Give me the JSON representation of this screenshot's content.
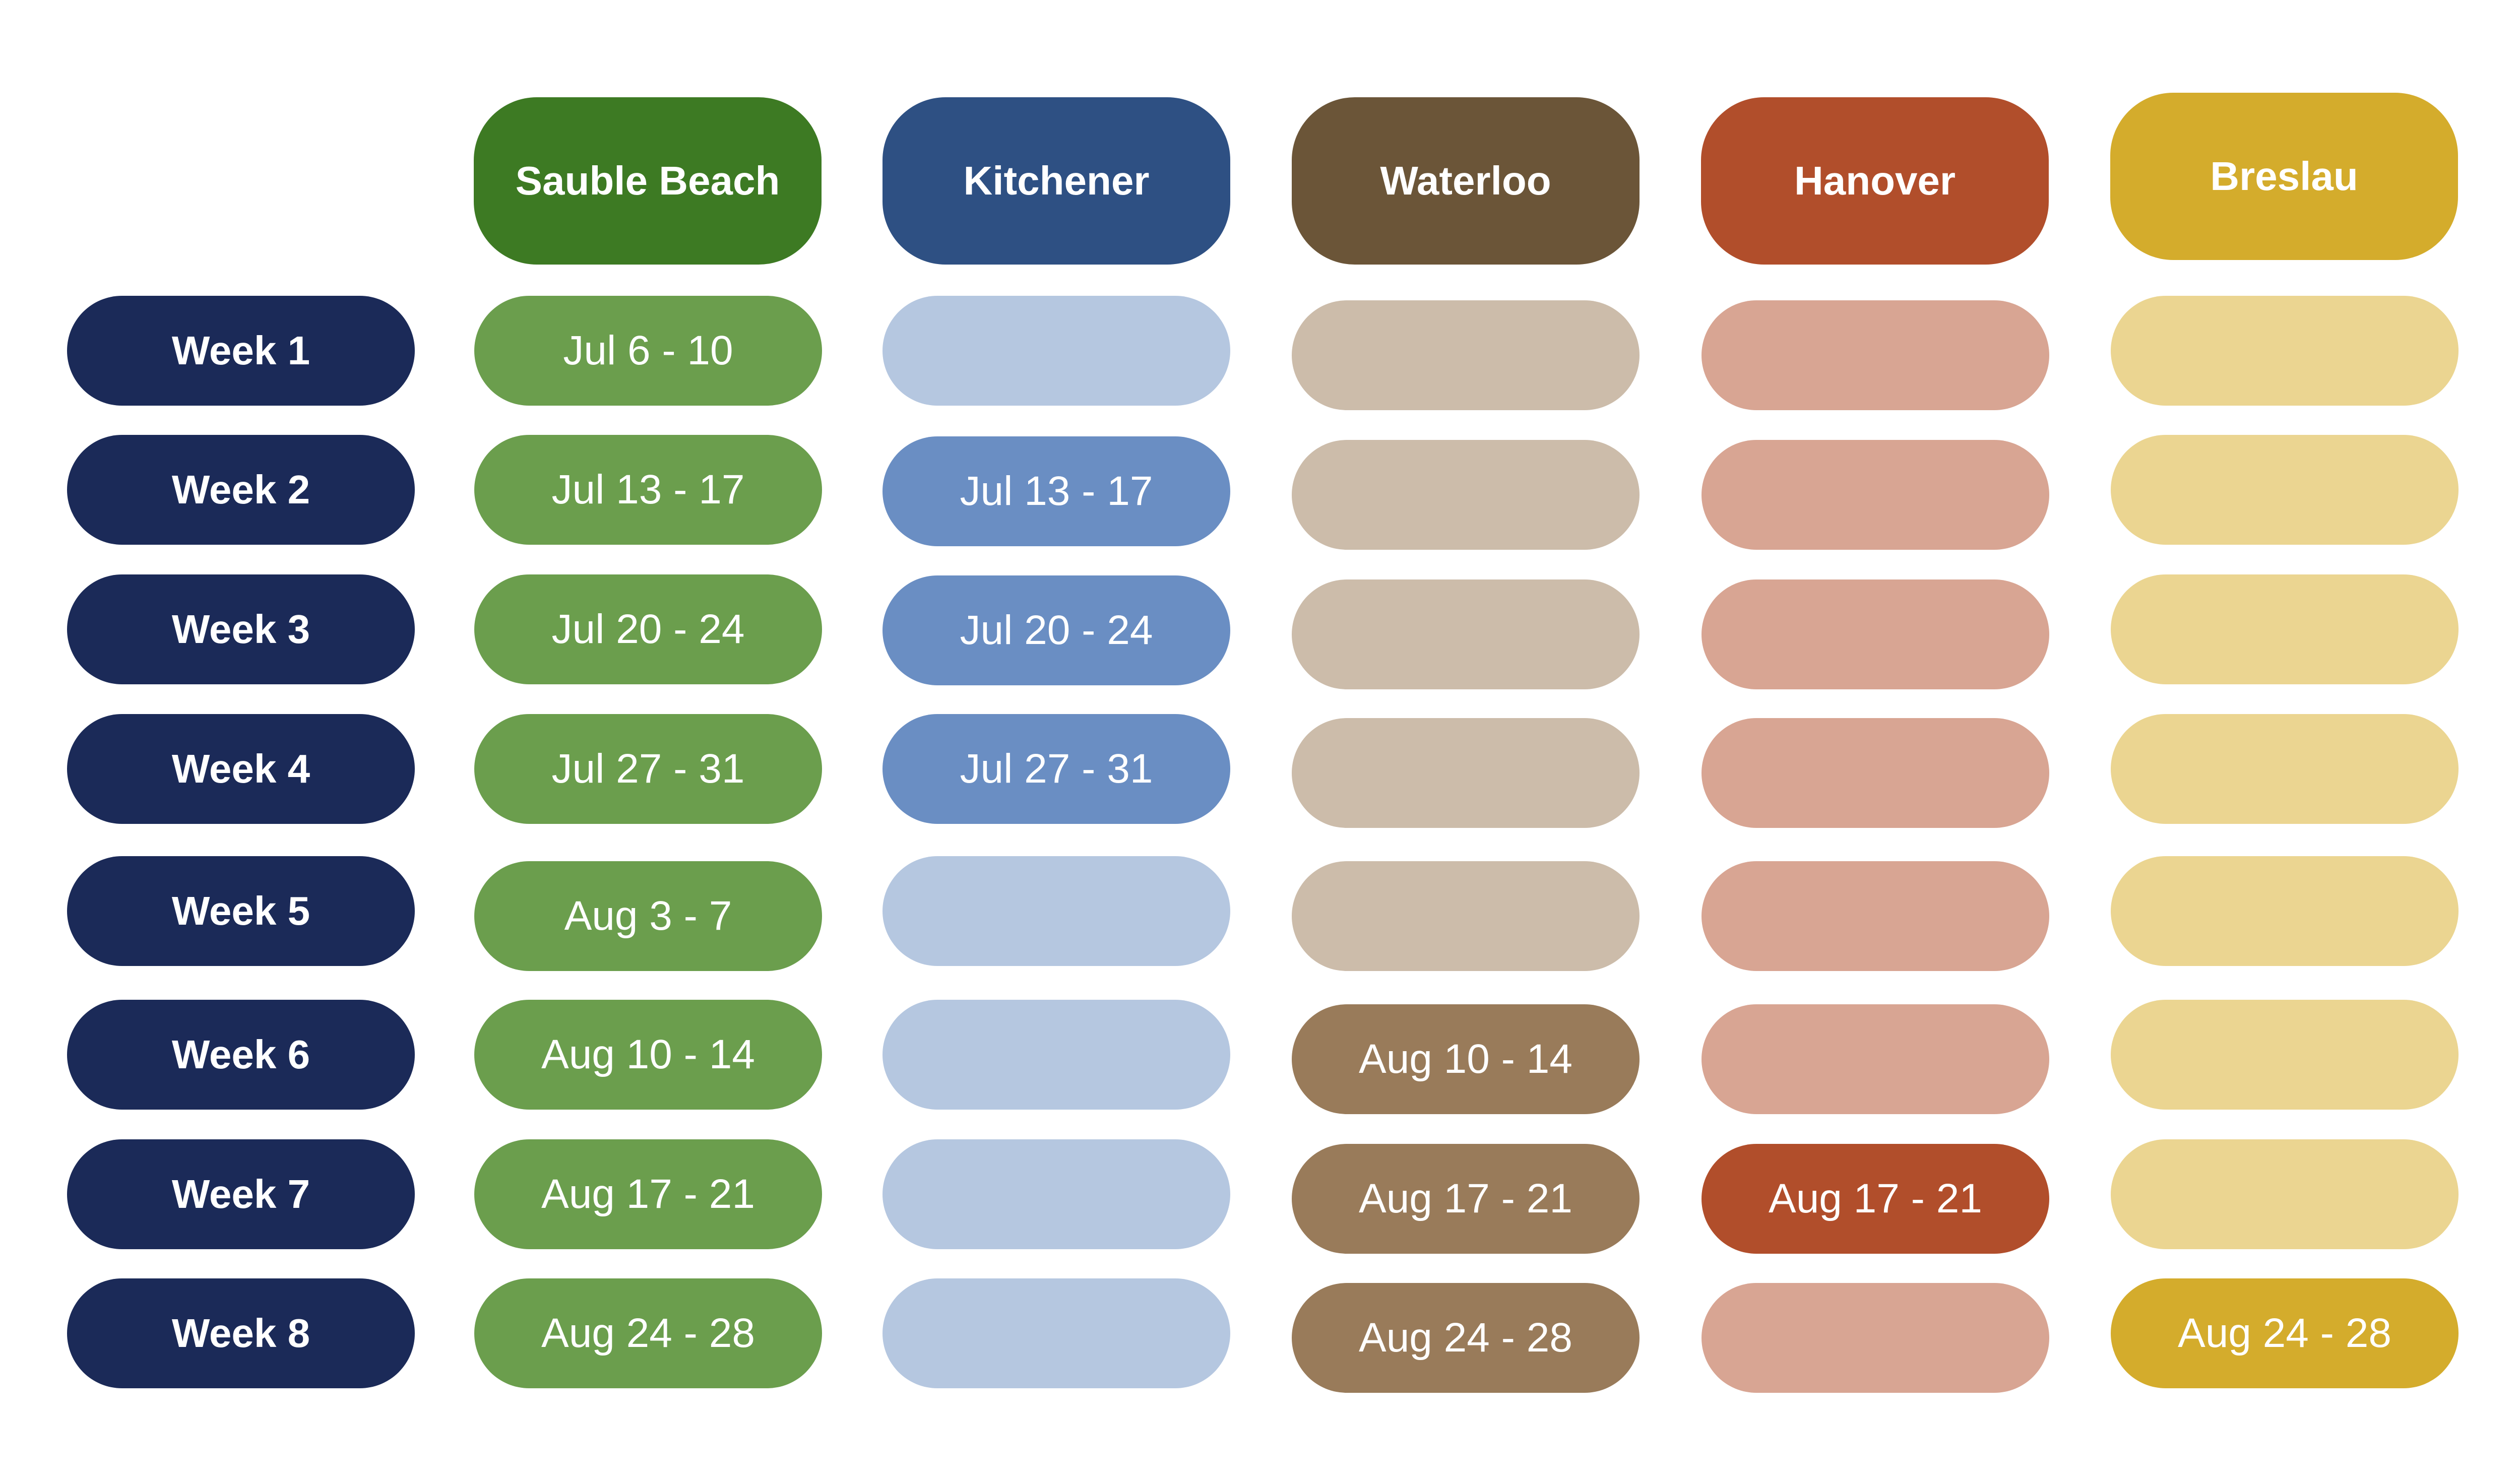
{
  "colors": {
    "week_bg": "#1b2a58",
    "locations": {
      "sauble_beach": {
        "header": "#3d7a23",
        "filled": "#6b9e4d",
        "empty": "#6b9e4d"
      },
      "kitchener": {
        "header": "#2e5083",
        "filled": "#6a8ec3",
        "empty": "#b5c7e0"
      },
      "waterloo": {
        "header": "#6b5538",
        "filled": "#997b5a",
        "empty": "#ccbcaa"
      },
      "hanover": {
        "header": "#b14e2b",
        "filled": "#b14e2b",
        "empty": "#d8a593"
      },
      "breslau": {
        "header": "#d4ac2c",
        "filled": "#d4ac2c",
        "empty": "#ebd591"
      }
    }
  },
  "weeks": [
    "Week 1",
    "Week 2",
    "Week 3",
    "Week 4",
    "Week 5",
    "Week 6",
    "Week 7",
    "Week 8"
  ],
  "locations": [
    "Sauble Beach",
    "Kitchener",
    "Waterloo",
    "Hanover",
    "Breslau"
  ],
  "schedule": {
    "sauble_beach": [
      "Jul 6 - 10",
      "Jul 13 - 17",
      "Jul 20 - 24",
      "Jul 27 - 31",
      "Aug 3 - 7",
      "Aug 10 - 14",
      "Aug 17 - 21",
      "Aug 24 - 28"
    ],
    "kitchener": [
      "",
      "Jul 13 - 17",
      "Jul 20 - 24",
      "Jul 27 - 31",
      "",
      "",
      "",
      ""
    ],
    "waterloo": [
      "",
      "",
      "",
      "",
      "",
      "Aug 10 - 14",
      "Aug 17 - 21",
      "Aug 24 - 28"
    ],
    "hanover": [
      "",
      "",
      "",
      "",
      "",
      "",
      "Aug 17 - 21",
      ""
    ],
    "breslau": [
      "",
      "",
      "",
      "",
      "",
      "",
      "",
      "Aug 24 - 28"
    ]
  }
}
